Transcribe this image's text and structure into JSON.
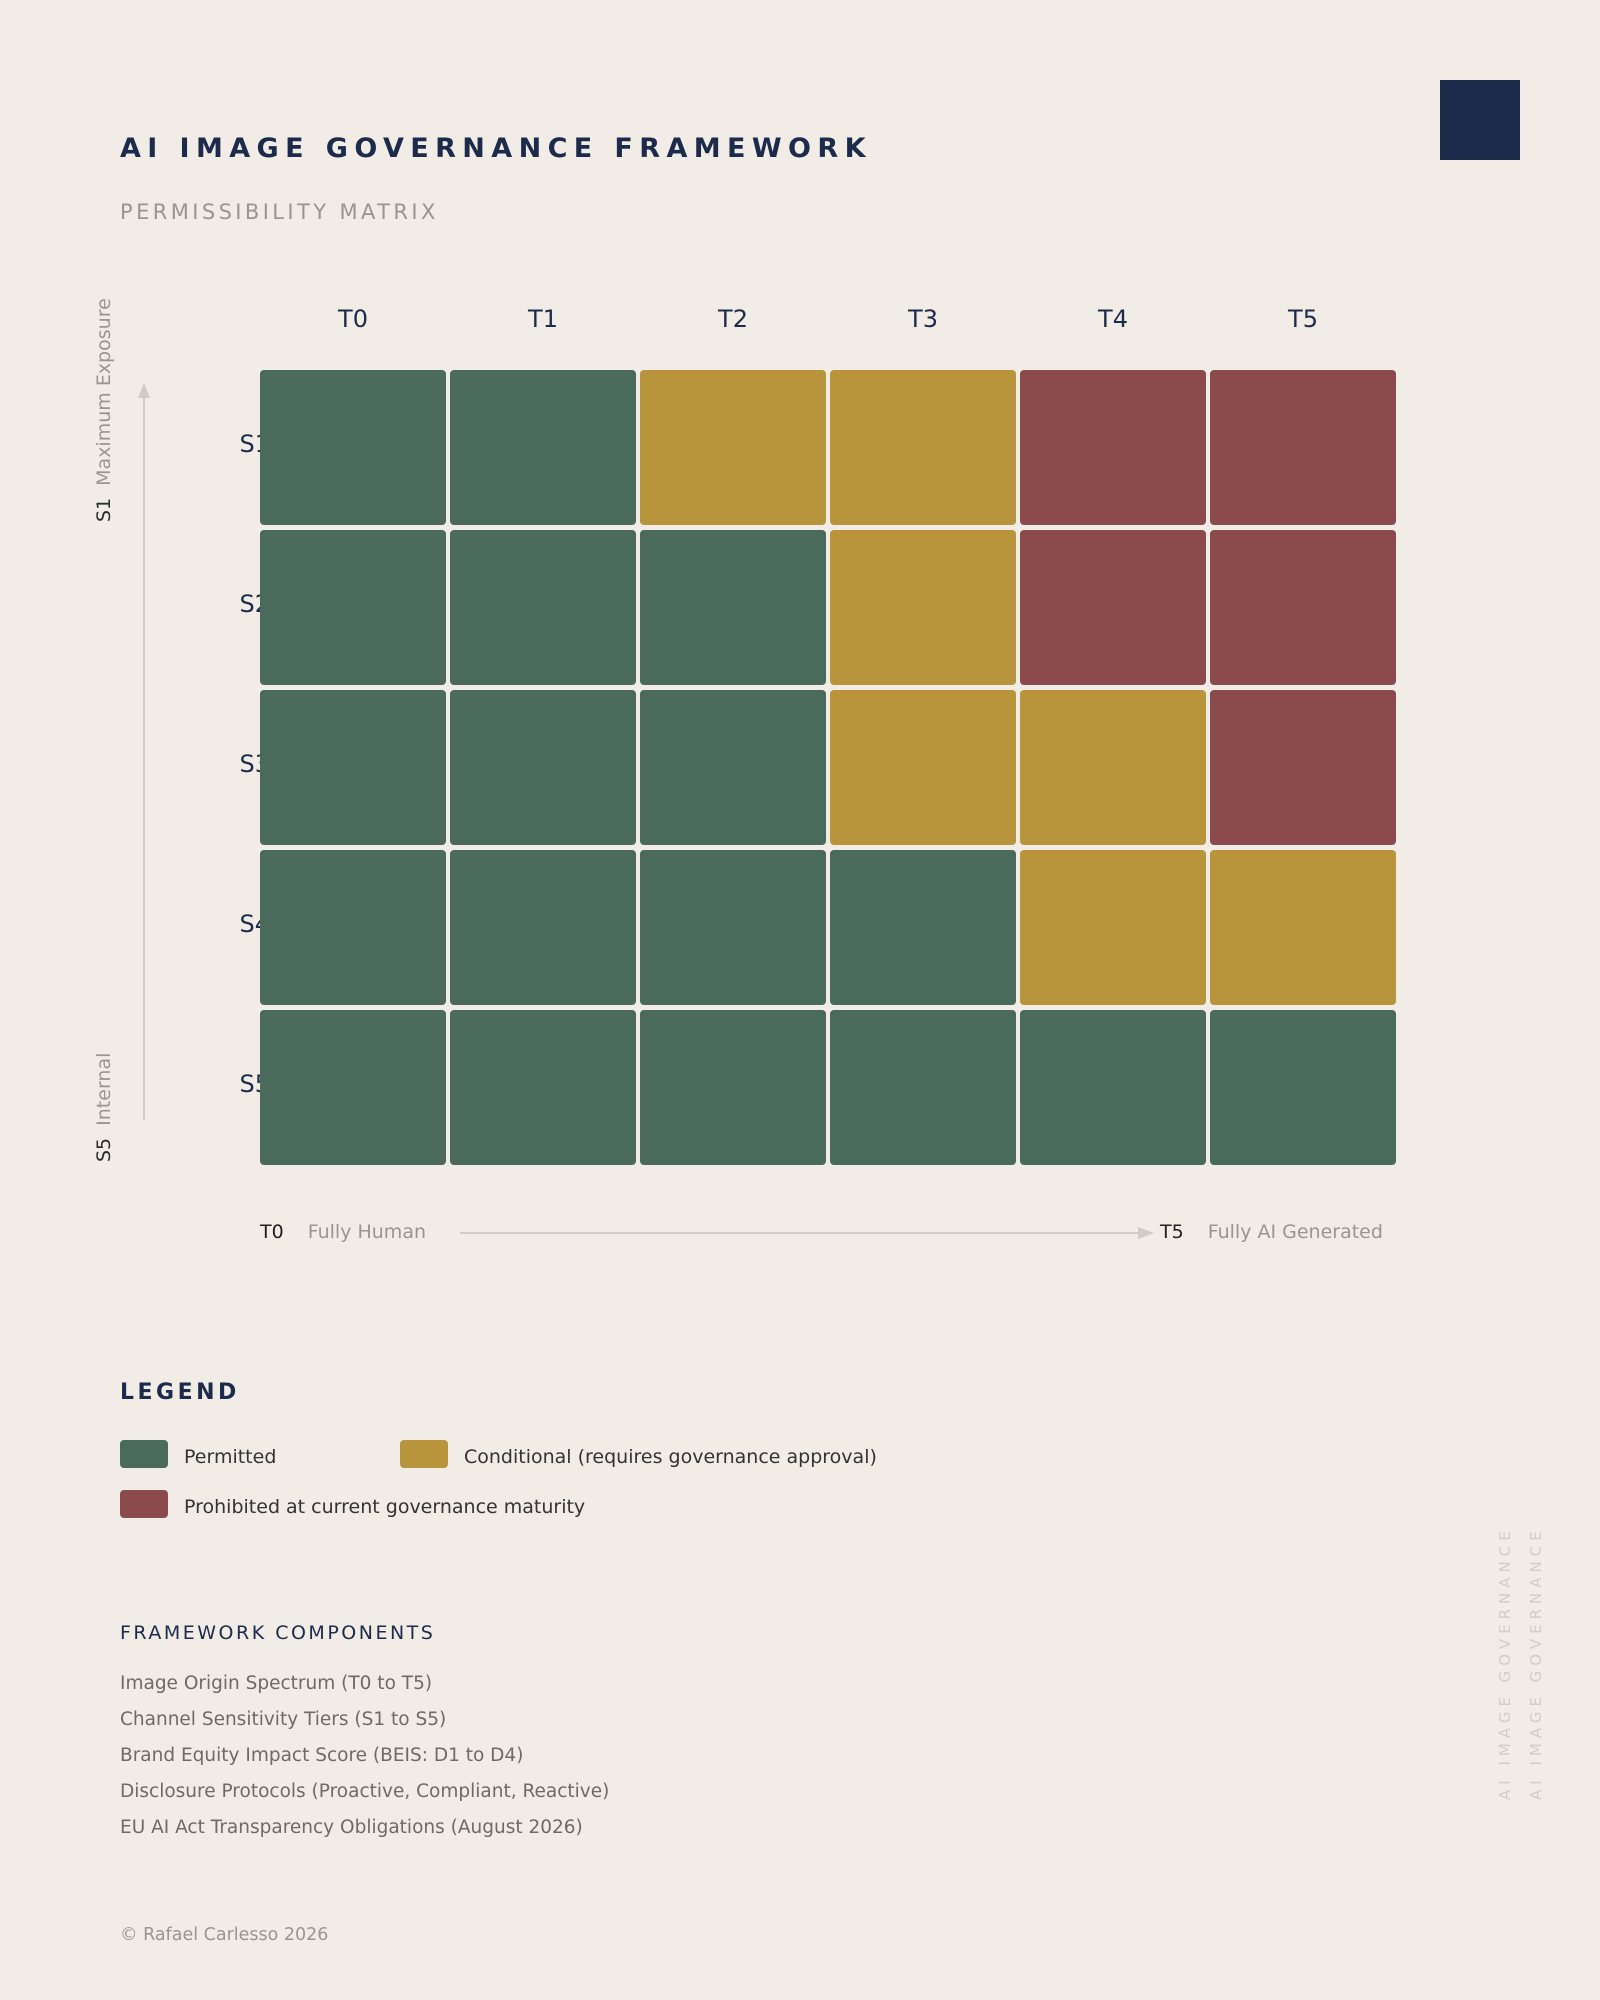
{
  "header": {
    "title": "AI IMAGE GOVERNANCE FRAMEWORK",
    "subtitle": "PERMISSIBILITY MATRIX"
  },
  "colors": {
    "permitted": "#4a6b5b",
    "conditional": "#b8953c",
    "prohibited": "#8b4a4b",
    "accent": "#1c2a4b",
    "background": "#f1ece5"
  },
  "chart_data": {
    "type": "heatmap",
    "title": "Permissibility Matrix",
    "x": [
      "T0",
      "T1",
      "T2",
      "T3",
      "T4",
      "T5"
    ],
    "y": [
      "S1",
      "S2",
      "S3",
      "S4",
      "S5"
    ],
    "values": [
      [
        "permitted",
        "permitted",
        "conditional",
        "conditional",
        "prohibited",
        "prohibited"
      ],
      [
        "permitted",
        "permitted",
        "permitted",
        "conditional",
        "prohibited",
        "prohibited"
      ],
      [
        "permitted",
        "permitted",
        "permitted",
        "conditional",
        "conditional",
        "prohibited"
      ],
      [
        "permitted",
        "permitted",
        "permitted",
        "permitted",
        "conditional",
        "conditional"
      ],
      [
        "permitted",
        "permitted",
        "permitted",
        "permitted",
        "permitted",
        "permitted"
      ]
    ],
    "xaxis": {
      "start_key": "T0",
      "start_label": "Fully Human",
      "end_key": "T5",
      "end_label": "Fully AI Generated"
    },
    "yaxis": {
      "top_key": "S1",
      "top_label": "Maximum Exposure",
      "bottom_key": "S5",
      "bottom_label": "Internal"
    }
  },
  "legend": {
    "title": "LEGEND",
    "items": [
      {
        "key": "permitted",
        "label": "Permitted"
      },
      {
        "key": "conditional",
        "label": "Conditional (requires governance approval)"
      },
      {
        "key": "prohibited",
        "label": "Prohibited at current governance maturity"
      }
    ]
  },
  "components": {
    "title": "FRAMEWORK COMPONENTS",
    "items": [
      "Image Origin Spectrum (T0 to T5)",
      "Channel Sensitivity Tiers (S1 to S5)",
      "Brand Equity Impact Score (BEIS: D1 to D4)",
      "Disclosure Protocols (Proactive, Compliant, Reactive)",
      "EU AI Act Transparency Obligations (August 2026)"
    ]
  },
  "watermark": "AI IMAGE GOVERNANCE",
  "footer": {
    "copyright": "© Rafael Carlesso 2026"
  }
}
